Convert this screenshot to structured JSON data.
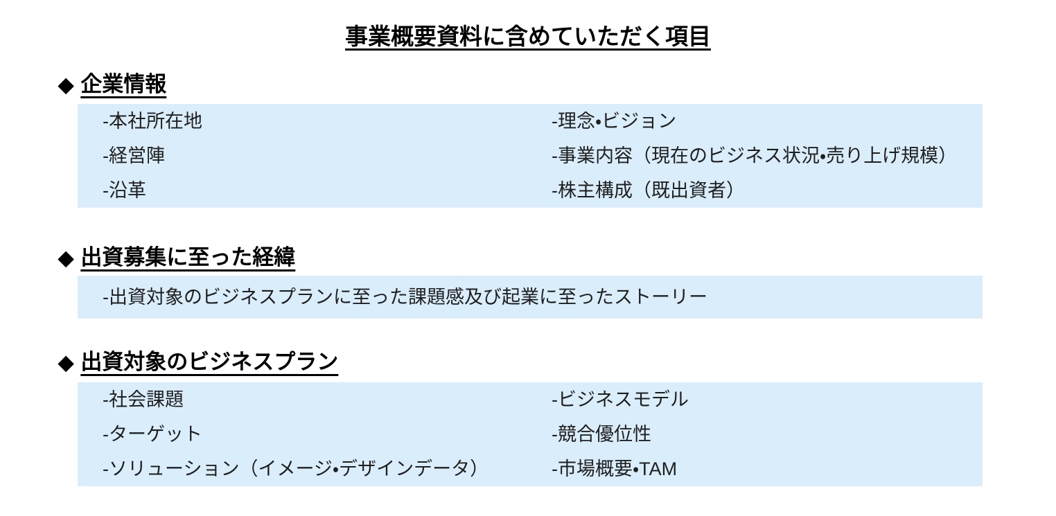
{
  "page": {
    "title": "事業概要資料に含めていただく項目"
  },
  "colors": {
    "box_bg": "#DAEDFB",
    "heading_text": "#000000",
    "body_text": "#1F1F1F"
  },
  "sections": [
    {
      "bullet": "◆",
      "heading": "企業情報",
      "columns": [
        [
          "-本社所在地",
          "-経営陣",
          "-沿革"
        ],
        [
          "-理念・ビジョン",
          "-事業内容（現在のビジネス状況・売り上げ規模）",
          "-株主構成（既出資者）"
        ]
      ]
    },
    {
      "bullet": "◆",
      "heading": "出資募集に至った経緯",
      "columns": [
        [
          "-出資対象のビジネスプランに至った課題感及び起業に至ったストーリー"
        ]
      ]
    },
    {
      "bullet": "◆",
      "heading": "出資対象のビジネスプラン",
      "columns": [
        [
          "-社会課題",
          "-ターゲット",
          "-ソリューション（イメージ・デザインデータ）"
        ],
        [
          "-ビジネスモデル",
          "-競合優位性",
          "-市場概要・TAM"
        ]
      ]
    }
  ]
}
